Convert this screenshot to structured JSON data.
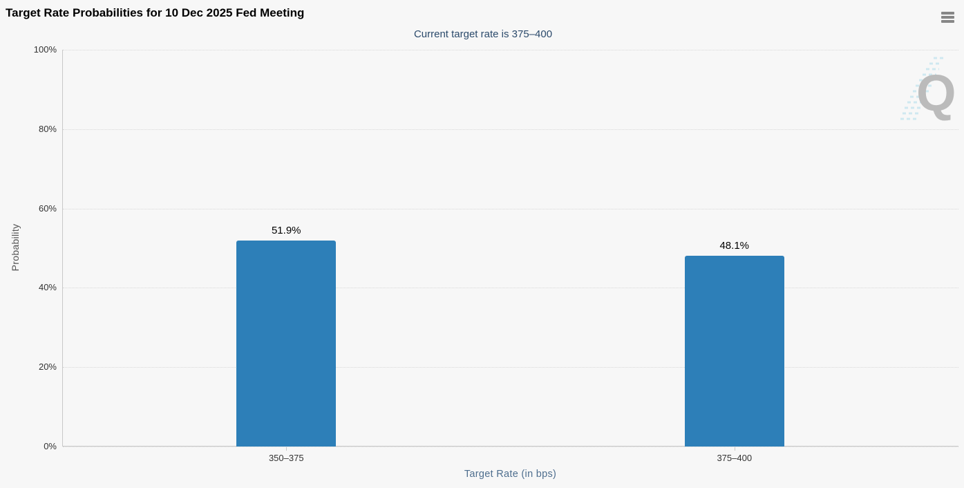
{
  "header": {
    "title": "Target Rate Probabilities for 10 Dec 2025 Fed Meeting",
    "menu_tooltip": "Chart context menu"
  },
  "chart_data": {
    "type": "bar",
    "title": "Target Rate Probabilities for 10 Dec 2025 Fed Meeting",
    "subtitle": "Current target rate is 375–400",
    "categories": [
      "350–375",
      "375–400"
    ],
    "values": [
      51.9,
      48.1
    ],
    "value_labels": [
      "51.9%",
      "48.1%"
    ],
    "xlabel": "Target Rate (in bps)",
    "ylabel": "Probability",
    "ylim": [
      0,
      100
    ],
    "ytick_labels": [
      "0%",
      "20%",
      "40%",
      "60%",
      "80%",
      "100%"
    ],
    "grid": "horizontal-dotted",
    "legend": "none",
    "bar_color": "#2d7fb8"
  },
  "watermark": {
    "letter": "Q"
  },
  "colors": {
    "background": "#f7f7f7",
    "bar": "#2d7fb8",
    "subtitle_text": "#2b4a6b",
    "xaxis_title_text": "#4e6e8e",
    "yaxis_title_text": "#555555",
    "tick_label_text": "#333333",
    "gridline": "#d8d8d8",
    "axis_line": "#c8c8c8",
    "watermark_q": "#bbbbbb",
    "watermark_swoosh": "#cbe7f0",
    "menu_icon": "#878787"
  }
}
